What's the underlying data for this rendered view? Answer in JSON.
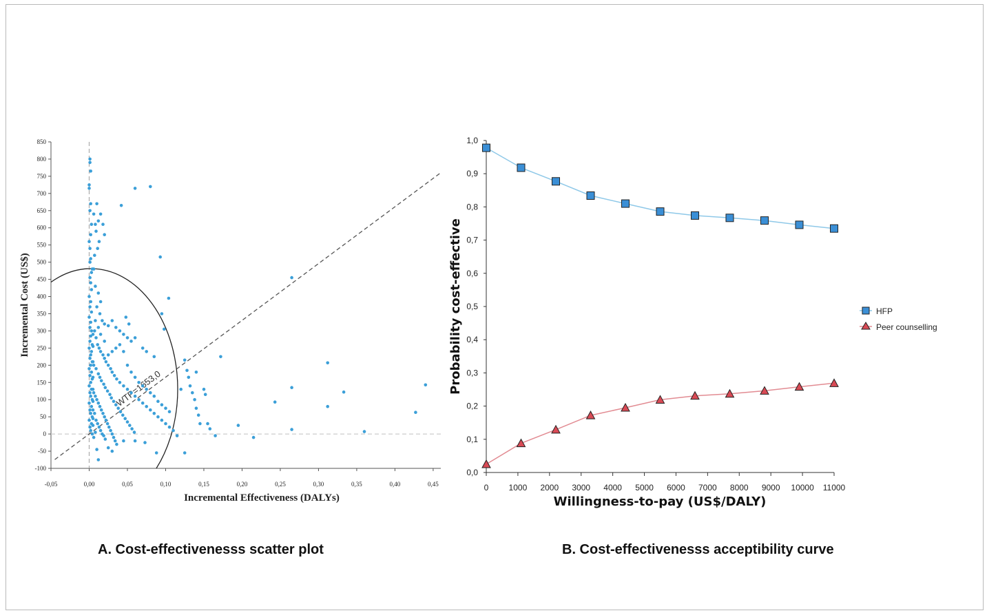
{
  "captions": {
    "a": "A. Cost-effectivenesss  scatter plot",
    "b": "B. Cost-effectivenesss  acceptibility curve"
  },
  "chart_data": [
    {
      "type": "scatter",
      "xlabel": "Incremental Effectiveness (DALYs)",
      "ylabel": "Incremental Cost (US$)",
      "xlim": [
        -0.05,
        0.46
      ],
      "ylim": [
        -100,
        850
      ],
      "xticks": [
        "-0,05",
        "0,00",
        "0,05",
        "0,10",
        "0,15",
        "0,20",
        "0,25",
        "0,30",
        "0,35",
        "0,40",
        "0,45"
      ],
      "yticks": [
        "-100",
        "-50",
        "0",
        "50",
        "100",
        "150",
        "200",
        "250",
        "300",
        "350",
        "400",
        "450",
        "500",
        "550",
        "600",
        "650",
        "700",
        "750",
        "800",
        "850"
      ],
      "wtp_label": "WTP=1653,0",
      "wtp_slope": 1653,
      "color": "#3b9fd8",
      "points": [
        [
          0.001,
          800
        ],
        [
          0.001,
          790
        ],
        [
          0.002,
          765
        ],
        [
          0.0,
          725
        ],
        [
          0.0,
          715
        ],
        [
          0.002,
          670
        ],
        [
          0.001,
          650
        ],
        [
          0.003,
          610
        ],
        [
          0.002,
          580
        ],
        [
          0.0,
          560
        ],
        [
          0.001,
          540
        ],
        [
          0.002,
          510
        ],
        [
          0.001,
          500
        ],
        [
          0.003,
          470
        ],
        [
          0.004,
          480
        ],
        [
          0.006,
          480
        ],
        [
          0.001,
          455
        ],
        [
          0.002,
          440
        ],
        [
          0.003,
          420
        ],
        [
          0.0,
          400
        ],
        [
          0.002,
          385
        ],
        [
          0.001,
          370
        ],
        [
          0.003,
          355
        ],
        [
          0.0,
          340
        ],
        [
          0.002,
          325
        ],
        [
          0.001,
          310
        ],
        [
          0.003,
          300
        ],
        [
          0.002,
          285
        ],
        [
          0.001,
          270
        ],
        [
          0.004,
          260
        ],
        [
          0.0,
          250
        ],
        [
          0.003,
          240
        ],
        [
          0.002,
          230
        ],
        [
          0.001,
          220
        ],
        [
          0.004,
          210
        ],
        [
          0.002,
          200
        ],
        [
          0.0,
          190
        ],
        [
          0.003,
          180
        ],
        [
          0.001,
          170
        ],
        [
          0.004,
          160
        ],
        [
          0.002,
          150
        ],
        [
          0.0,
          140
        ],
        [
          0.003,
          130
        ],
        [
          0.001,
          120
        ],
        [
          0.002,
          110
        ],
        [
          0.004,
          100
        ],
        [
          0.0,
          90
        ],
        [
          0.003,
          80
        ],
        [
          0.001,
          70
        ],
        [
          0.002,
          60
        ],
        [
          0.004,
          50
        ],
        [
          0.0,
          40
        ],
        [
          0.003,
          30
        ],
        [
          0.001,
          20
        ],
        [
          0.002,
          10
        ],
        [
          0.004,
          0
        ],
        [
          0.006,
          640
        ],
        [
          0.008,
          610
        ],
        [
          0.01,
          670
        ],
        [
          0.012,
          620
        ],
        [
          0.015,
          640
        ],
        [
          0.018,
          610
        ],
        [
          0.02,
          580
        ],
        [
          0.009,
          590
        ],
        [
          0.013,
          560
        ],
        [
          0.011,
          540
        ],
        [
          0.007,
          520
        ],
        [
          0.042,
          665
        ],
        [
          0.06,
          715
        ],
        [
          0.08,
          720
        ],
        [
          0.093,
          515
        ],
        [
          0.104,
          395
        ],
        [
          0.265,
          455
        ],
        [
          0.008,
          430
        ],
        [
          0.012,
          410
        ],
        [
          0.015,
          385
        ],
        [
          0.01,
          370
        ],
        [
          0.014,
          350
        ],
        [
          0.017,
          330
        ],
        [
          0.02,
          320
        ],
        [
          0.025,
          315
        ],
        [
          0.03,
          330
        ],
        [
          0.035,
          310
        ],
        [
          0.04,
          300
        ],
        [
          0.045,
          290
        ],
        [
          0.05,
          280
        ],
        [
          0.055,
          270
        ],
        [
          0.048,
          340
        ],
        [
          0.052,
          320
        ],
        [
          0.06,
          280
        ],
        [
          0.07,
          250
        ],
        [
          0.075,
          240
        ],
        [
          0.085,
          225
        ],
        [
          0.095,
          350
        ],
        [
          0.098,
          305
        ],
        [
          0.007,
          300
        ],
        [
          0.009,
          280
        ],
        [
          0.011,
          260
        ],
        [
          0.013,
          250
        ],
        [
          0.015,
          240
        ],
        [
          0.018,
          230
        ],
        [
          0.02,
          220
        ],
        [
          0.022,
          210
        ],
        [
          0.025,
          200
        ],
        [
          0.028,
          190
        ],
        [
          0.03,
          180
        ],
        [
          0.033,
          170
        ],
        [
          0.036,
          160
        ],
        [
          0.04,
          150
        ],
        [
          0.045,
          140
        ],
        [
          0.05,
          130
        ],
        [
          0.055,
          120
        ],
        [
          0.06,
          110
        ],
        [
          0.065,
          100
        ],
        [
          0.07,
          90
        ],
        [
          0.075,
          80
        ],
        [
          0.08,
          70
        ],
        [
          0.085,
          60
        ],
        [
          0.09,
          50
        ],
        [
          0.095,
          40
        ],
        [
          0.1,
          30
        ],
        [
          0.105,
          20
        ],
        [
          0.11,
          10
        ],
        [
          0.115,
          -5
        ],
        [
          0.006,
          200
        ],
        [
          0.009,
          190
        ],
        [
          0.012,
          175
        ],
        [
          0.014,
          165
        ],
        [
          0.016,
          155
        ],
        [
          0.019,
          145
        ],
        [
          0.021,
          135
        ],
        [
          0.024,
          125
        ],
        [
          0.027,
          115
        ],
        [
          0.029,
          105
        ],
        [
          0.032,
          95
        ],
        [
          0.035,
          85
        ],
        [
          0.038,
          75
        ],
        [
          0.041,
          65
        ],
        [
          0.044,
          55
        ],
        [
          0.047,
          45
        ],
        [
          0.05,
          35
        ],
        [
          0.053,
          25
        ],
        [
          0.056,
          15
        ],
        [
          0.059,
          5
        ],
        [
          0.006,
          120
        ],
        [
          0.008,
          110
        ],
        [
          0.01,
          100
        ],
        [
          0.012,
          90
        ],
        [
          0.014,
          80
        ],
        [
          0.016,
          70
        ],
        [
          0.018,
          60
        ],
        [
          0.02,
          50
        ],
        [
          0.022,
          40
        ],
        [
          0.024,
          30
        ],
        [
          0.026,
          20
        ],
        [
          0.028,
          10
        ],
        [
          0.03,
          0
        ],
        [
          0.032,
          -10
        ],
        [
          0.034,
          -20
        ],
        [
          0.036,
          -30
        ],
        [
          0.01,
          -45
        ],
        [
          0.012,
          -75
        ],
        [
          0.025,
          -40
        ],
        [
          0.03,
          -50
        ],
        [
          0.045,
          -20
        ],
        [
          0.06,
          -20
        ],
        [
          0.073,
          -25
        ],
        [
          0.088,
          -55
        ],
        [
          0.125,
          -55
        ],
        [
          0.007,
          60
        ],
        [
          0.009,
          40
        ],
        [
          0.011,
          30
        ],
        [
          0.013,
          20
        ],
        [
          0.015,
          10
        ],
        [
          0.017,
          0
        ],
        [
          0.019,
          -5
        ],
        [
          0.021,
          -15
        ],
        [
          0.008,
          5
        ],
        [
          0.006,
          -10
        ],
        [
          0.005,
          25
        ],
        [
          0.005,
          45
        ],
        [
          0.005,
          70
        ],
        [
          0.005,
          95
        ],
        [
          0.005,
          130
        ],
        [
          0.005,
          165
        ],
        [
          0.005,
          210
        ],
        [
          0.005,
          255
        ],
        [
          0.005,
          290
        ],
        [
          0.12,
          130
        ],
        [
          0.125,
          215
        ],
        [
          0.128,
          185
        ],
        [
          0.13,
          165
        ],
        [
          0.132,
          140
        ],
        [
          0.135,
          120
        ],
        [
          0.138,
          100
        ],
        [
          0.14,
          75
        ],
        [
          0.143,
          55
        ],
        [
          0.14,
          180
        ],
        [
          0.145,
          30
        ],
        [
          0.15,
          130
        ],
        [
          0.152,
          115
        ],
        [
          0.155,
          30
        ],
        [
          0.158,
          15
        ],
        [
          0.165,
          -5
        ],
        [
          0.172,
          225
        ],
        [
          0.195,
          25
        ],
        [
          0.215,
          -10
        ],
        [
          0.243,
          93
        ],
        [
          0.265,
          135
        ],
        [
          0.265,
          13
        ],
        [
          0.312,
          207
        ],
        [
          0.312,
          80
        ],
        [
          0.333,
          122
        ],
        [
          0.36,
          7
        ],
        [
          0.427,
          63
        ],
        [
          0.44,
          143
        ],
        [
          0.045,
          240
        ],
        [
          0.05,
          200
        ],
        [
          0.055,
          180
        ],
        [
          0.06,
          165
        ],
        [
          0.065,
          150
        ],
        [
          0.07,
          140
        ],
        [
          0.075,
          130
        ],
        [
          0.08,
          120
        ],
        [
          0.085,
          110
        ],
        [
          0.09,
          95
        ],
        [
          0.095,
          85
        ],
        [
          0.1,
          75
        ],
        [
          0.105,
          65
        ],
        [
          0.04,
          260
        ],
        [
          0.035,
          250
        ],
        [
          0.03,
          240
        ],
        [
          0.025,
          230
        ],
        [
          0.02,
          270
        ],
        [
          0.015,
          290
        ],
        [
          0.012,
          310
        ],
        [
          0.008,
          330
        ]
      ]
    },
    {
      "type": "line",
      "xlabel": "Willingness-to-pay (US$/DALY)",
      "ylabel": "Probability cost-effective",
      "xlim": [
        0,
        11000
      ],
      "ylim": [
        0,
        1.0
      ],
      "xticks": [
        "0",
        "1000",
        "2000",
        "3000",
        "4000",
        "5000",
        "6000",
        "7000",
        "8000",
        "9000",
        "10000",
        "11000"
      ],
      "yticks": [
        "0,0",
        "0,1",
        "0,2",
        "0,3",
        "0,4",
        "0,5",
        "0,6",
        "0,7",
        "0,8",
        "0,9",
        "1,0"
      ],
      "x": [
        0,
        1100,
        2200,
        3300,
        4400,
        5500,
        6600,
        7700,
        8800,
        9900,
        11000
      ],
      "series": [
        {
          "name": "HFP",
          "marker": "square",
          "color": "#3b8fd6",
          "line_color": "#8ec8e8",
          "values": [
            0.978,
            0.918,
            0.877,
            0.834,
            0.81,
            0.786,
            0.774,
            0.767,
            0.759,
            0.746,
            0.735
          ]
        },
        {
          "name": "Peer counselling",
          "marker": "triangle",
          "color": "#d94a55",
          "line_color": "#e28b92",
          "values": [
            0.025,
            0.088,
            0.129,
            0.172,
            0.195,
            0.219,
            0.231,
            0.237,
            0.246,
            0.258,
            0.269
          ]
        }
      ],
      "legend_position": "right"
    }
  ]
}
